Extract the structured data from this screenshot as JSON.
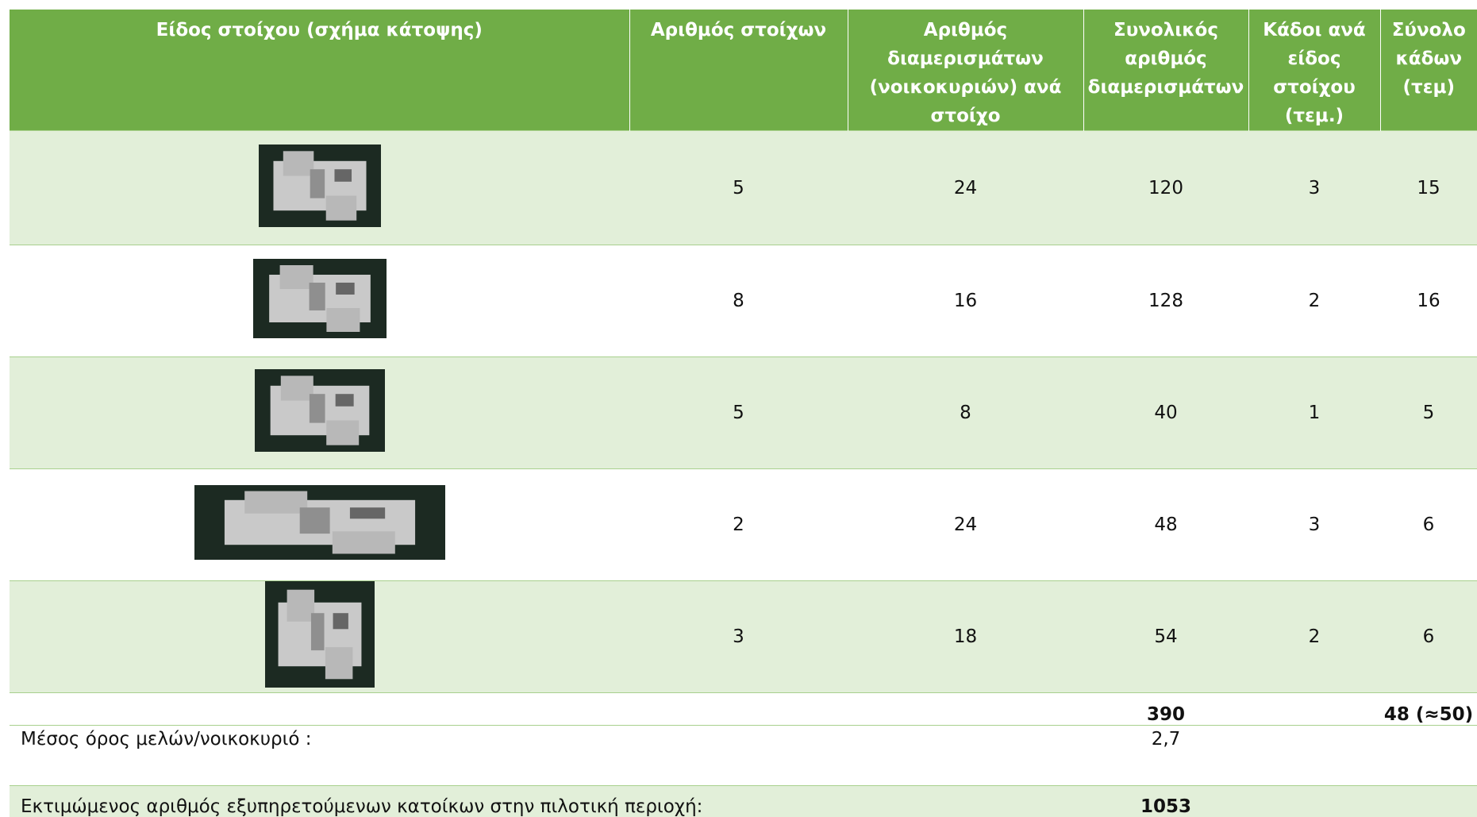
{
  "table": {
    "headers": [
      "Είδος στοίχου (σχήμα κάτοψης)",
      "Αριθμός στοίχων",
      "Αριθμός διαμερισμάτων (νοικοκυριών) ανά στοίχο",
      "Συνολικός αριθμός διαμερισμάτων",
      "Κάδοι ανά είδος στοίχου (τεμ.)",
      "Σύνολο κάδων (τεμ)"
    ],
    "rows": [
      [
        5,
        24,
        120,
        3,
        15
      ],
      [
        8,
        16,
        128,
        2,
        16
      ],
      [
        5,
        8,
        40,
        1,
        5
      ],
      [
        2,
        24,
        48,
        3,
        6
      ],
      [
        3,
        18,
        54,
        2,
        6
      ]
    ],
    "totals": {
      "apartments": 390,
      "bins": "48 (≈50)"
    },
    "average": {
      "label": "Μέσος όρος μελών/νοικοκυριό :",
      "value": "2,7"
    },
    "estimate": {
      "label": "Εκτιμώμενος αριθμός εξυπηρετούμενων κατοίκων στην πιλοτική περιοχή:",
      "value": 1053
    }
  }
}
